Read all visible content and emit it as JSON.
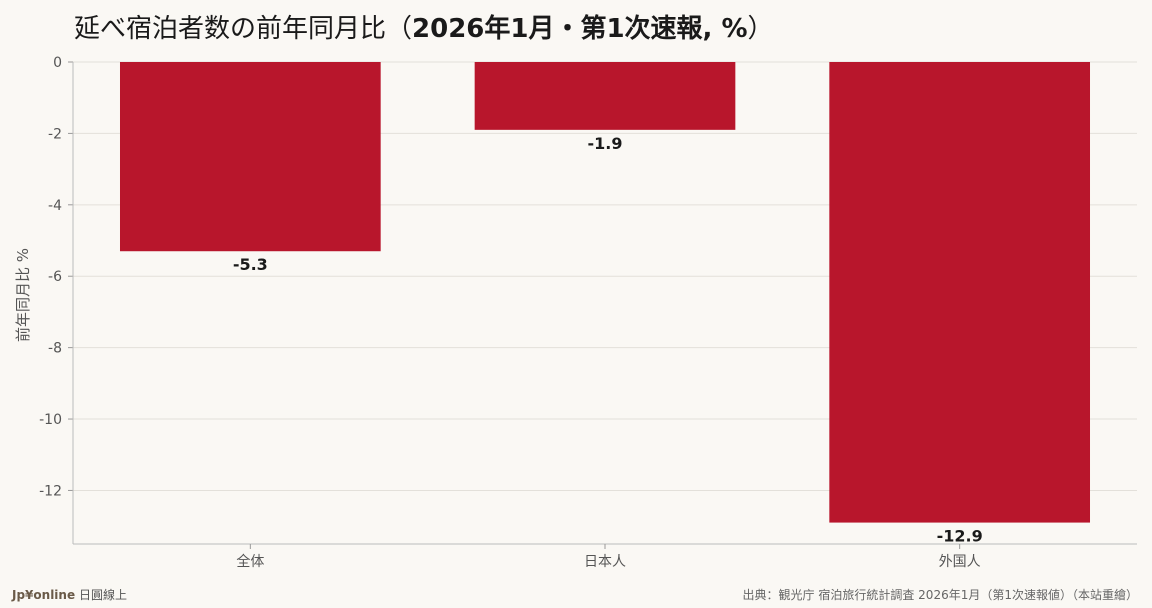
{
  "title_main": "延べ宿泊者数の前年同月比（",
  "title_bold": "2026年1月・第1次速報, %",
  "title_end": "）",
  "chart_data": {
    "type": "bar",
    "categories": [
      "全体",
      "日本人",
      "外国人"
    ],
    "values": [
      -5.3,
      -1.9,
      -12.9
    ],
    "value_labels": [
      "-5.3",
      "-1.9",
      "-12.9"
    ],
    "ylabel": "前年同月比 %",
    "yticks": [
      0,
      -2,
      -4,
      -6,
      -8,
      -10,
      -12
    ],
    "ylim": [
      -13.5,
      0
    ],
    "grid": true,
    "bar_color": "#b8162c"
  },
  "footer": {
    "brand": "Jp¥online",
    "brand_sub": "日圓線上",
    "source": "出典：観光庁 宿泊旅行統計調査 2026年1月（第1次速報値）（本站重繪）"
  }
}
